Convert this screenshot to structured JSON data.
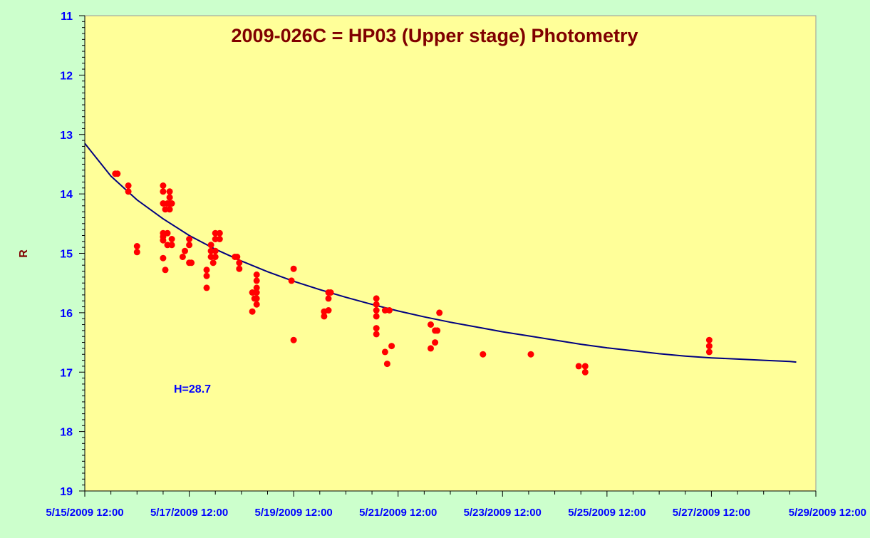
{
  "colors": {
    "background": "#ccffcc",
    "plot_area": "#ffff99",
    "title": "#800000",
    "axis_label": "#800000",
    "tick_label": "#0000ff",
    "points": "#ff0000",
    "fit_curve": "#000080",
    "annotation": "#0000ff"
  },
  "chart_data": {
    "type": "scatter",
    "title": "2009-026C = HP03 (Upper stage) Photometry",
    "xlabel": "",
    "ylabel": "R",
    "annotation": "H=28.7",
    "x_is_datetime": true,
    "xlim": [
      "2009-05-15T12:00",
      "2009-05-29T12:00"
    ],
    "ylim": [
      11,
      19
    ],
    "y_inverted": true,
    "grid": false,
    "legend": "none",
    "x_ticks": [
      "5/15/2009 12:00",
      "5/17/2009 12:00",
      "5/19/2009 12:00",
      "5/21/2009 12:00",
      "5/23/2009 12:00",
      "5/25/2009 12:00",
      "5/27/2009 12:00",
      "5/29/2009 12:00"
    ],
    "y_ticks": [
      "11",
      "12",
      "13",
      "14",
      "15",
      "16",
      "17",
      "18",
      "19"
    ],
    "series": [
      {
        "points": [
          {
            "x": "2009-05-16T02:00",
            "y": 13.66
          },
          {
            "x": "2009-05-16T03:00",
            "y": 13.66
          },
          {
            "x": "2009-05-16T08:00",
            "y": 13.86
          },
          {
            "x": "2009-05-16T08:00",
            "y": 13.96
          },
          {
            "x": "2009-05-16T12:00",
            "y": 14.88
          },
          {
            "x": "2009-05-16T12:00",
            "y": 14.98
          },
          {
            "x": "2009-05-17T00:00",
            "y": 13.86
          },
          {
            "x": "2009-05-17T00:00",
            "y": 13.96
          },
          {
            "x": "2009-05-17T00:00",
            "y": 14.16
          },
          {
            "x": "2009-05-17T00:00",
            "y": 14.66
          },
          {
            "x": "2009-05-17T00:00",
            "y": 14.72
          },
          {
            "x": "2009-05-17T00:00",
            "y": 14.78
          },
          {
            "x": "2009-05-17T00:00",
            "y": 15.08
          },
          {
            "x": "2009-05-17T01:00",
            "y": 15.28
          },
          {
            "x": "2009-05-17T01:00",
            "y": 14.26
          },
          {
            "x": "2009-05-17T02:00",
            "y": 14.66
          },
          {
            "x": "2009-05-17T02:00",
            "y": 14.86
          },
          {
            "x": "2009-05-17T02:00",
            "y": 14.16
          },
          {
            "x": "2009-05-17T03:00",
            "y": 13.96
          },
          {
            "x": "2009-05-17T03:00",
            "y": 14.06
          },
          {
            "x": "2009-05-17T03:00",
            "y": 14.16
          },
          {
            "x": "2009-05-17T03:00",
            "y": 14.26
          },
          {
            "x": "2009-05-17T04:00",
            "y": 14.16
          },
          {
            "x": "2009-05-17T04:00",
            "y": 14.76
          },
          {
            "x": "2009-05-17T04:00",
            "y": 14.86
          },
          {
            "x": "2009-05-17T09:00",
            "y": 15.06
          },
          {
            "x": "2009-05-17T10:00",
            "y": 14.96
          },
          {
            "x": "2009-05-17T12:00",
            "y": 14.86
          },
          {
            "x": "2009-05-17T12:00",
            "y": 15.16
          },
          {
            "x": "2009-05-17T12:00",
            "y": 14.76
          },
          {
            "x": "2009-05-17T13:00",
            "y": 15.16
          },
          {
            "x": "2009-05-17T20:00",
            "y": 15.28
          },
          {
            "x": "2009-05-17T20:00",
            "y": 15.38
          },
          {
            "x": "2009-05-17T20:00",
            "y": 15.58
          },
          {
            "x": "2009-05-17T22:00",
            "y": 14.86
          },
          {
            "x": "2009-05-17T22:00",
            "y": 14.96
          },
          {
            "x": "2009-05-17T22:00",
            "y": 15.06
          },
          {
            "x": "2009-05-17T23:00",
            "y": 15.16
          },
          {
            "x": "2009-05-18T00:00",
            "y": 14.66
          },
          {
            "x": "2009-05-18T00:00",
            "y": 14.76
          },
          {
            "x": "2009-05-18T00:00",
            "y": 14.96
          },
          {
            "x": "2009-05-18T00:00",
            "y": 15.06
          },
          {
            "x": "2009-05-18T02:00",
            "y": 14.66
          },
          {
            "x": "2009-05-18T02:00",
            "y": 14.76
          },
          {
            "x": "2009-05-18T09:00",
            "y": 15.06
          },
          {
            "x": "2009-05-18T10:00",
            "y": 15.06
          },
          {
            "x": "2009-05-18T11:00",
            "y": 15.16
          },
          {
            "x": "2009-05-18T11:00",
            "y": 15.26
          },
          {
            "x": "2009-05-18T17:00",
            "y": 15.98
          },
          {
            "x": "2009-05-18T17:00",
            "y": 15.66
          },
          {
            "x": "2009-05-18T18:00",
            "y": 15.76
          },
          {
            "x": "2009-05-18T19:00",
            "y": 15.36
          },
          {
            "x": "2009-05-18T19:00",
            "y": 15.46
          },
          {
            "x": "2009-05-18T19:00",
            "y": 15.58
          },
          {
            "x": "2009-05-18T19:00",
            "y": 15.66
          },
          {
            "x": "2009-05-18T19:00",
            "y": 15.76
          },
          {
            "x": "2009-05-18T19:00",
            "y": 15.86
          },
          {
            "x": "2009-05-19T11:00",
            "y": 15.46
          },
          {
            "x": "2009-05-19T12:00",
            "y": 15.26
          },
          {
            "x": "2009-05-19T12:00",
            "y": 16.46
          },
          {
            "x": "2009-05-20T02:00",
            "y": 15.98
          },
          {
            "x": "2009-05-20T02:00",
            "y": 16.06
          },
          {
            "x": "2009-05-20T04:00",
            "y": 15.96
          },
          {
            "x": "2009-05-20T04:00",
            "y": 15.76
          },
          {
            "x": "2009-05-20T04:00",
            "y": 15.66
          },
          {
            "x": "2009-05-20T05:00",
            "y": 15.66
          },
          {
            "x": "2009-05-21T02:00",
            "y": 15.76
          },
          {
            "x": "2009-05-21T02:00",
            "y": 15.86
          },
          {
            "x": "2009-05-21T02:00",
            "y": 15.96
          },
          {
            "x": "2009-05-21T02:00",
            "y": 16.06
          },
          {
            "x": "2009-05-21T02:00",
            "y": 16.26
          },
          {
            "x": "2009-05-21T02:00",
            "y": 16.36
          },
          {
            "x": "2009-05-21T06:00",
            "y": 16.66
          },
          {
            "x": "2009-05-21T06:00",
            "y": 15.96
          },
          {
            "x": "2009-05-21T07:00",
            "y": 16.86
          },
          {
            "x": "2009-05-21T08:00",
            "y": 15.96
          },
          {
            "x": "2009-05-21T09:00",
            "y": 16.56
          },
          {
            "x": "2009-05-22T03:00",
            "y": 16.2
          },
          {
            "x": "2009-05-22T03:00",
            "y": 16.6
          },
          {
            "x": "2009-05-22T05:00",
            "y": 16.5
          },
          {
            "x": "2009-05-22T05:00",
            "y": 16.3
          },
          {
            "x": "2009-05-22T06:00",
            "y": 16.3
          },
          {
            "x": "2009-05-22T07:00",
            "y": 16.0
          },
          {
            "x": "2009-05-23T03:00",
            "y": 16.7
          },
          {
            "x": "2009-05-24T01:00",
            "y": 16.7
          },
          {
            "x": "2009-05-24T23:00",
            "y": 16.9
          },
          {
            "x": "2009-05-25T02:00",
            "y": 16.9
          },
          {
            "x": "2009-05-25T02:00",
            "y": 17.0
          },
          {
            "x": "2009-05-27T11:00",
            "y": 16.46
          },
          {
            "x": "2009-05-27T11:00",
            "y": 16.56
          },
          {
            "x": "2009-05-27T11:00",
            "y": 16.66
          }
        ]
      }
    ],
    "fit_curve": {
      "x": [
        "2009-05-15T12:00",
        "2009-05-16T00:00",
        "2009-05-16T12:00",
        "2009-05-17T00:00",
        "2009-05-17T12:00",
        "2009-05-18T00:00",
        "2009-05-18T12:00",
        "2009-05-19T00:00",
        "2009-05-19T12:00",
        "2009-05-20T00:00",
        "2009-05-20T12:00",
        "2009-05-21T00:00",
        "2009-05-21T12:00",
        "2009-05-22T00:00",
        "2009-05-22T12:00",
        "2009-05-23T00:00",
        "2009-05-23T12:00",
        "2009-05-24T00:00",
        "2009-05-24T12:00",
        "2009-05-25T00:00",
        "2009-05-25T12:00",
        "2009-05-26T00:00",
        "2009-05-26T12:00",
        "2009-05-27T00:00",
        "2009-05-27T12:00",
        "2009-05-28T00:00",
        "2009-05-28T12:00",
        "2009-05-29T00:00",
        "2009-05-29T03:00"
      ],
      "y": [
        13.15,
        13.7,
        14.1,
        14.42,
        14.7,
        14.93,
        15.13,
        15.31,
        15.47,
        15.61,
        15.74,
        15.86,
        15.97,
        16.07,
        16.16,
        16.24,
        16.32,
        16.39,
        16.46,
        16.53,
        16.59,
        16.64,
        16.69,
        16.73,
        16.76,
        16.78,
        16.8,
        16.82,
        16.83
      ]
    }
  }
}
